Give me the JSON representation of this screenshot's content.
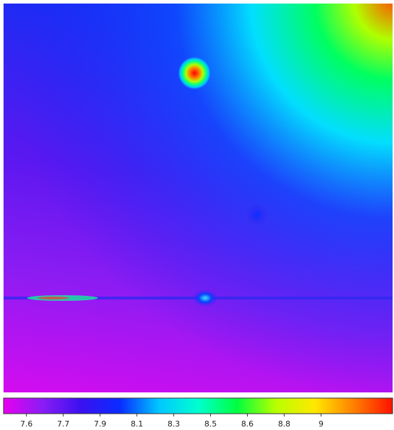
{
  "chart_data": {
    "type": "heatmap",
    "colormap": [
      "#e800f0",
      "#8a1cf4",
      "#3a10f0",
      "#0a2cff",
      "#00c8ff",
      "#00ffd0",
      "#00ff40",
      "#b8ff00",
      "#ffe800",
      "#ff8000",
      "#ff1000"
    ],
    "zlim": [
      7.46,
      9.33
    ],
    "zticks": [
      {
        "value": 7.57,
        "label": "7.6"
      },
      {
        "value": 7.747,
        "label": "7.7"
      },
      {
        "value": 7.924,
        "label": "7.9"
      },
      {
        "value": 8.101,
        "label": "8.1"
      },
      {
        "value": 8.278,
        "label": "8.3"
      },
      {
        "value": 8.455,
        "label": "8.5"
      },
      {
        "value": 8.632,
        "label": "8.6"
      },
      {
        "value": 8.809,
        "label": "8.8"
      },
      {
        "value": 8.986,
        "label": "9"
      }
    ]
  }
}
